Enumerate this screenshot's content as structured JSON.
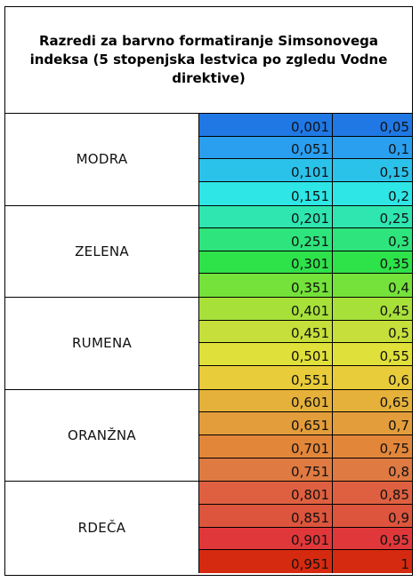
{
  "title": "Razredi za barvno formatiranje Simsonovega indeksa (5 stopenjska lestvica po zgledu Vodne direktive)",
  "groups": [
    {
      "label": "MODRA",
      "rows": [
        {
          "from": "0,001",
          "to": "0,05",
          "color": "#1f78e4"
        },
        {
          "from": "0,051",
          "to": "0,1",
          "color": "#2a9ff0"
        },
        {
          "from": "0,101",
          "to": "0,15",
          "color": "#2bc2ea"
        },
        {
          "from": "0,151",
          "to": "0,2",
          "color": "#2ee6e6"
        }
      ]
    },
    {
      "label": "ZELENA",
      "rows": [
        {
          "from": "0,201",
          "to": "0,25",
          "color": "#2fe5b0"
        },
        {
          "from": "0,251",
          "to": "0,3",
          "color": "#2ee47c"
        },
        {
          "from": "0,301",
          "to": "0,35",
          "color": "#2ee24a"
        },
        {
          "from": "0,351",
          "to": "0,4",
          "color": "#74e23a"
        }
      ]
    },
    {
      "label": "RUMENA",
      "rows": [
        {
          "from": "0,401",
          "to": "0,45",
          "color": "#a8e03a"
        },
        {
          "from": "0,451",
          "to": "0,5",
          "color": "#c6df3a"
        },
        {
          "from": "0,501",
          "to": "0,55",
          "color": "#e0e03a"
        },
        {
          "from": "0,551",
          "to": "0,6",
          "color": "#e8cc3a"
        }
      ]
    },
    {
      "label": "ORANŽNA",
      "rows": [
        {
          "from": "0,601",
          "to": "0,65",
          "color": "#e5b13a"
        },
        {
          "from": "0,651",
          "to": "0,7",
          "color": "#e39d3a"
        },
        {
          "from": "0,701",
          "to": "0,75",
          "color": "#e2863a"
        },
        {
          "from": "0,751",
          "to": "0,8",
          "color": "#df7a42"
        }
      ]
    },
    {
      "label": "RDEČA",
      "rows": [
        {
          "from": "0,801",
          "to": "0,85",
          "color": "#df6040"
        },
        {
          "from": "0,851",
          "to": "0,9",
          "color": "#dc553c"
        },
        {
          "from": "0,901",
          "to": "0,95",
          "color": "#e0383a"
        },
        {
          "from": "0,951",
          "to": "1",
          "color": "#d62a10"
        }
      ]
    }
  ]
}
